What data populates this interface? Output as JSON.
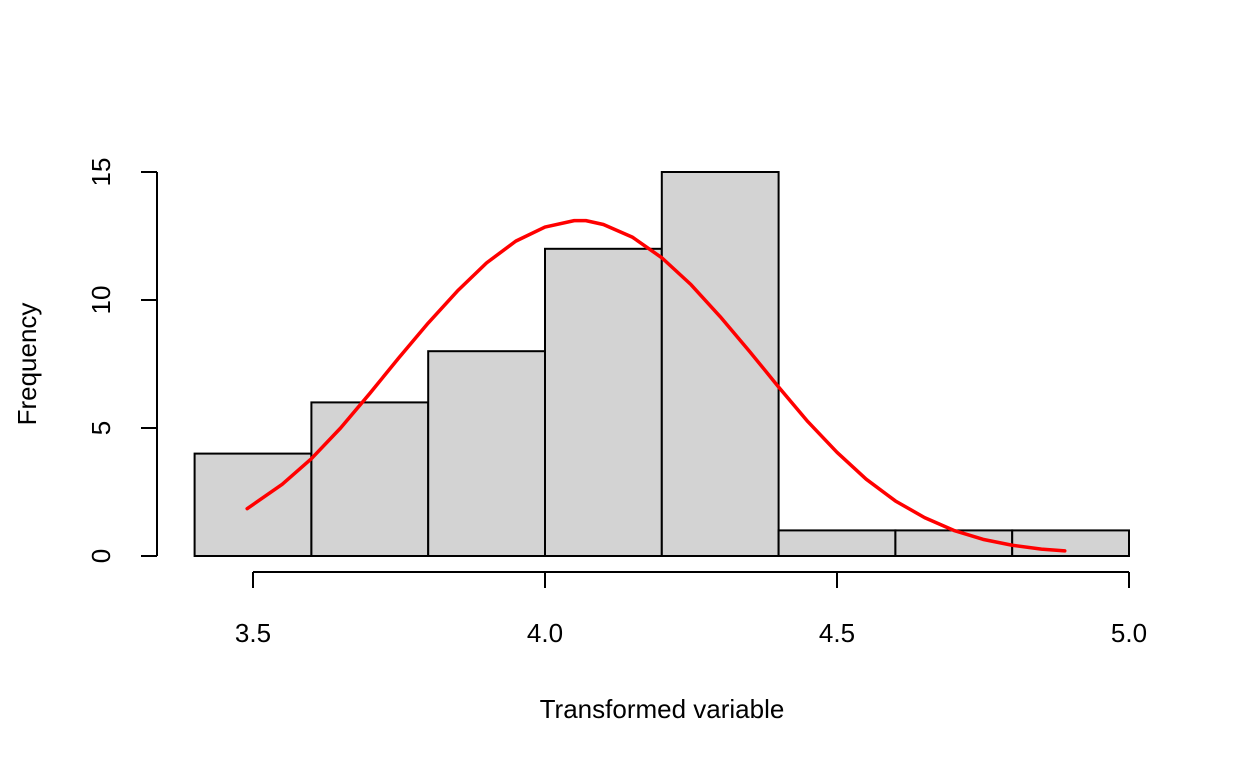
{
  "chart_data": {
    "type": "bar",
    "subtype": "histogram",
    "title": "",
    "xlabel": "Transformed variable",
    "ylabel": "Frequency",
    "bins": [
      {
        "start": 3.4,
        "end": 3.6,
        "count": 4
      },
      {
        "start": 3.6,
        "end": 3.8,
        "count": 6
      },
      {
        "start": 3.8,
        "end": 4.0,
        "count": 8
      },
      {
        "start": 4.0,
        "end": 4.2,
        "count": 12
      },
      {
        "start": 4.2,
        "end": 4.4,
        "count": 15
      },
      {
        "start": 4.4,
        "end": 4.6,
        "count": 1
      },
      {
        "start": 4.6,
        "end": 4.8,
        "count": 1
      },
      {
        "start": 4.8,
        "end": 5.0,
        "count": 1
      }
    ],
    "x_ticks": [
      3.5,
      4.0,
      4.5,
      5.0
    ],
    "x_tick_labels": [
      "3.5",
      "4.0",
      "4.5",
      "5.0"
    ],
    "y_ticks": [
      0,
      5,
      10,
      15
    ],
    "y_tick_labels": [
      "0",
      "5",
      "10",
      "15"
    ],
    "xlim": [
      3.4,
      5.0
    ],
    "ylim": [
      0,
      15
    ],
    "grid": false,
    "legend": "none",
    "series": [
      {
        "type": "line",
        "x": [
          3.49,
          3.55,
          3.6,
          3.65,
          3.7,
          3.75,
          3.8,
          3.85,
          3.9,
          3.95,
          4.0,
          4.05,
          4.07,
          4.1,
          4.15,
          4.2,
          4.25,
          4.3,
          4.35,
          4.4,
          4.45,
          4.5,
          4.55,
          4.6,
          4.65,
          4.7,
          4.75,
          4.8,
          4.85,
          4.89
        ],
        "values": [
          1.85,
          2.8,
          3.8,
          5.0,
          6.35,
          7.75,
          9.1,
          10.35,
          11.45,
          12.3,
          12.85,
          13.1,
          13.1,
          12.95,
          12.45,
          11.65,
          10.6,
          9.35,
          8.0,
          6.6,
          5.25,
          4.05,
          3.0,
          2.15,
          1.5,
          1.0,
          0.65,
          0.42,
          0.27,
          0.2
        ],
        "color": "#ff0000"
      }
    ],
    "bar_fill": "#d3d3d3",
    "bar_stroke": "#000000"
  }
}
